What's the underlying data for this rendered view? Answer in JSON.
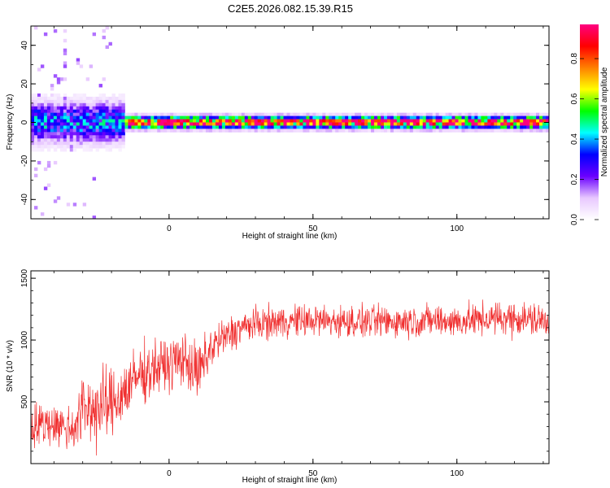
{
  "page": {
    "title": "C2E5.2026.082.15.39.R15"
  },
  "chart_data": [
    {
      "type": "heatmap",
      "xlabel": "Height of straight line (km)",
      "ylabel": "Frequency (Hz)",
      "xlim": [
        -48,
        132
      ],
      "ylim": [
        -50,
        50
      ],
      "xticks": [
        0,
        50,
        100
      ],
      "yticks": [
        -40,
        -20,
        0,
        20,
        40
      ],
      "colorbar": {
        "label": "Normalized spectral amplitude",
        "range": [
          0,
          0.97
        ],
        "ticks": [
          0.0,
          0.2,
          0.4,
          0.6,
          0.8
        ],
        "tick_labels": [
          "0.0",
          "0.2",
          "0.4",
          "0.6",
          "0.8"
        ],
        "colors": [
          "#ffffff",
          "#e8c8ff",
          "#6a00ff",
          "#0000ff",
          "#00ffff",
          "#00ff00",
          "#ffff00",
          "#ff8000",
          "#ff0000",
          "#ff0080"
        ]
      },
      "features": [
        {
          "x_range": [
            -48,
            -15
          ],
          "freq_center": 0,
          "freq_halfwidth": 10,
          "amplitude": 0.35,
          "description": "broad noisy band"
        },
        {
          "x_range": [
            -15,
            132
          ],
          "freq_center": 0,
          "freq_halfwidth": 3,
          "amplitude": 0.9,
          "description": "narrow strong band"
        }
      ]
    },
    {
      "type": "line",
      "xlabel": "Height of straight line (km)",
      "ylabel": "SNR (10 * v/v)",
      "xlim": [
        -48,
        132
      ],
      "ylim": [
        0,
        1560
      ],
      "xticks": [
        0,
        50,
        100
      ],
      "yticks": [
        500,
        1000,
        1500
      ],
      "color": "#f03030",
      "series": [
        {
          "x": [
            -48,
            -40,
            -35,
            -32,
            -30,
            -25,
            -20,
            -15,
            -10,
            -5,
            0,
            5,
            10,
            15,
            20,
            25,
            30,
            40,
            50,
            60,
            70,
            80,
            90,
            100,
            110,
            120,
            132
          ],
          "mean": [
            300,
            330,
            280,
            330,
            450,
            450,
            480,
            600,
            720,
            780,
            800,
            860,
            720,
            950,
            1030,
            1100,
            1130,
            1150,
            1160,
            1150,
            1150,
            1150,
            1160,
            1150,
            1170,
            1180,
            1150
          ],
          "spread": [
            180,
            160,
            170,
            220,
            260,
            300,
            260,
            240,
            220,
            200,
            200,
            200,
            220,
            170,
            140,
            130,
            120,
            120,
            120,
            120,
            120,
            120,
            120,
            120,
            120,
            130,
            130
          ]
        }
      ]
    }
  ]
}
